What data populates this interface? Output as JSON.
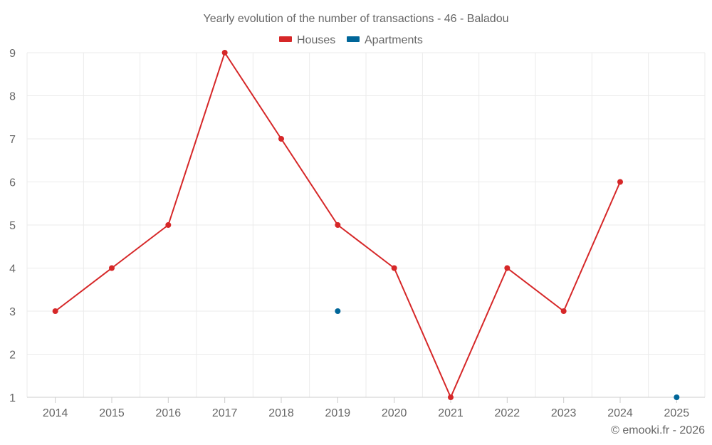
{
  "chart_data": {
    "type": "line",
    "title": "Yearly evolution of the number of transactions - 46 - Baladou",
    "categories": [
      "2014",
      "2015",
      "2016",
      "2017",
      "2018",
      "2019",
      "2020",
      "2021",
      "2022",
      "2023",
      "2024",
      "2025"
    ],
    "ylim": [
      1,
      9
    ],
    "yticks": [
      1,
      2,
      3,
      4,
      5,
      6,
      7,
      8,
      9
    ],
    "grid": true,
    "legend_position": "top-center",
    "series": [
      {
        "name": "Houses",
        "color": "#d62728",
        "values": [
          3,
          4,
          5,
          9,
          7,
          5,
          4,
          1,
          4,
          3,
          6,
          null
        ]
      },
      {
        "name": "Apartments",
        "color": "#006699",
        "values": [
          null,
          null,
          null,
          null,
          null,
          3,
          null,
          null,
          null,
          null,
          null,
          1
        ]
      }
    ]
  },
  "credit": "© emooki.fr - 2026"
}
